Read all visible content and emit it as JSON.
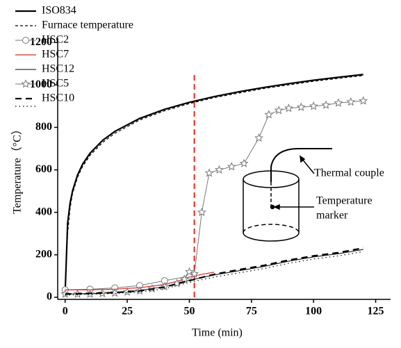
{
  "chart_data": {
    "type": "line",
    "xlabel": "Time (min)",
    "ylabel": "Temperature（°C）",
    "xlim": [
      -3,
      131
    ],
    "ylim": [
      -10,
      1220
    ],
    "xticks": [
      0,
      25,
      50,
      75,
      100,
      125
    ],
    "yticks": [
      0,
      200,
      400,
      600,
      800,
      1000,
      1200
    ],
    "series": [
      {
        "name": "ISO834",
        "color": "#000000",
        "style": "solid",
        "width": 2.2,
        "marker": "none",
        "x": [
          0,
          1,
          2,
          3,
          5,
          7,
          10,
          15,
          20,
          30,
          40,
          50,
          60,
          70,
          80,
          90,
          100,
          110,
          120
        ],
        "values": [
          20,
          349,
          444,
          502,
          576,
          626,
          678,
          738,
          781,
          842,
          885,
          918,
          945,
          968,
          988,
          1006,
          1022,
          1036,
          1049
        ]
      },
      {
        "name": "Furnace temperature",
        "color": "#000000",
        "style": "dashed",
        "width": 1.2,
        "marker": "none",
        "x": [
          0,
          1,
          2,
          3,
          5,
          7,
          10,
          15,
          20,
          30,
          40,
          50,
          60,
          70,
          80,
          90,
          100,
          110,
          120
        ],
        "values": [
          20,
          300,
          420,
          490,
          565,
          615,
          668,
          728,
          772,
          835,
          878,
          912,
          940,
          962,
          983,
          1000,
          1017,
          1031,
          1044
        ]
      },
      {
        "name": "HSC2",
        "color": "#777777",
        "style": "solid",
        "width": 1,
        "marker": "circle",
        "x": [
          0,
          10,
          20,
          30,
          40,
          50
        ],
        "values": [
          35,
          38,
          44,
          55,
          78,
          100
        ]
      },
      {
        "name": "HSC7",
        "color": "#d42a20",
        "style": "solid",
        "width": 1.2,
        "marker": "none",
        "x": [
          0,
          10,
          20,
          30,
          40,
          45,
          50,
          55,
          60
        ],
        "values": [
          35,
          35,
          38,
          45,
          60,
          75,
          95,
          108,
          118
        ]
      },
      {
        "name": "HSC12",
        "color": "#000000",
        "style": "solid",
        "width": 1,
        "marker": "none",
        "x": [
          0,
          10,
          20,
          30,
          40,
          50,
          60,
          70,
          80,
          90,
          100,
          110,
          120
        ],
        "values": [
          15,
          18,
          22,
          32,
          50,
          80,
          105,
          125,
          145,
          170,
          190,
          205,
          225
        ]
      },
      {
        "name": "HSC5",
        "color": "#777777",
        "style": "solid",
        "width": 1,
        "marker": "star",
        "x": [
          0,
          5,
          10,
          15,
          20,
          25,
          30,
          35,
          40,
          45,
          48,
          50,
          52,
          55,
          58,
          62,
          67,
          72,
          78,
          82,
          86,
          90,
          95,
          100,
          105,
          110,
          115,
          120
        ],
        "values": [
          15,
          15,
          15,
          18,
          20,
          25,
          30,
          40,
          50,
          65,
          85,
          120,
          110,
          400,
          585,
          600,
          615,
          630,
          750,
          860,
          880,
          890,
          895,
          900,
          905,
          915,
          920,
          925
        ]
      },
      {
        "name": "HSC10",
        "color": "#000000",
        "style": "dashed-thick",
        "width": 2.2,
        "marker": "none",
        "x": [
          0,
          10,
          20,
          30,
          40,
          50,
          60,
          70,
          80,
          90,
          100,
          110,
          120
        ],
        "values": [
          15,
          18,
          22,
          30,
          48,
          78,
          108,
          130,
          150,
          175,
          195,
          210,
          232
        ]
      },
      {
        "color": "#000000",
        "style": "dotted",
        "width": 1.2,
        "marker": "none",
        "x": [
          0,
          10,
          20,
          30,
          40,
          50,
          60,
          70,
          80,
          90,
          100,
          110,
          120
        ],
        "values": [
          10,
          14,
          18,
          25,
          40,
          70,
          95,
          115,
          135,
          160,
          180,
          195,
          215
        ]
      }
    ],
    "vline": {
      "x": 52,
      "y": [
        0,
        1060
      ],
      "color": "#e8281e"
    },
    "annotations": {
      "thermal": "Thermal couple",
      "marker": [
        "Temperature",
        "marker"
      ]
    }
  }
}
